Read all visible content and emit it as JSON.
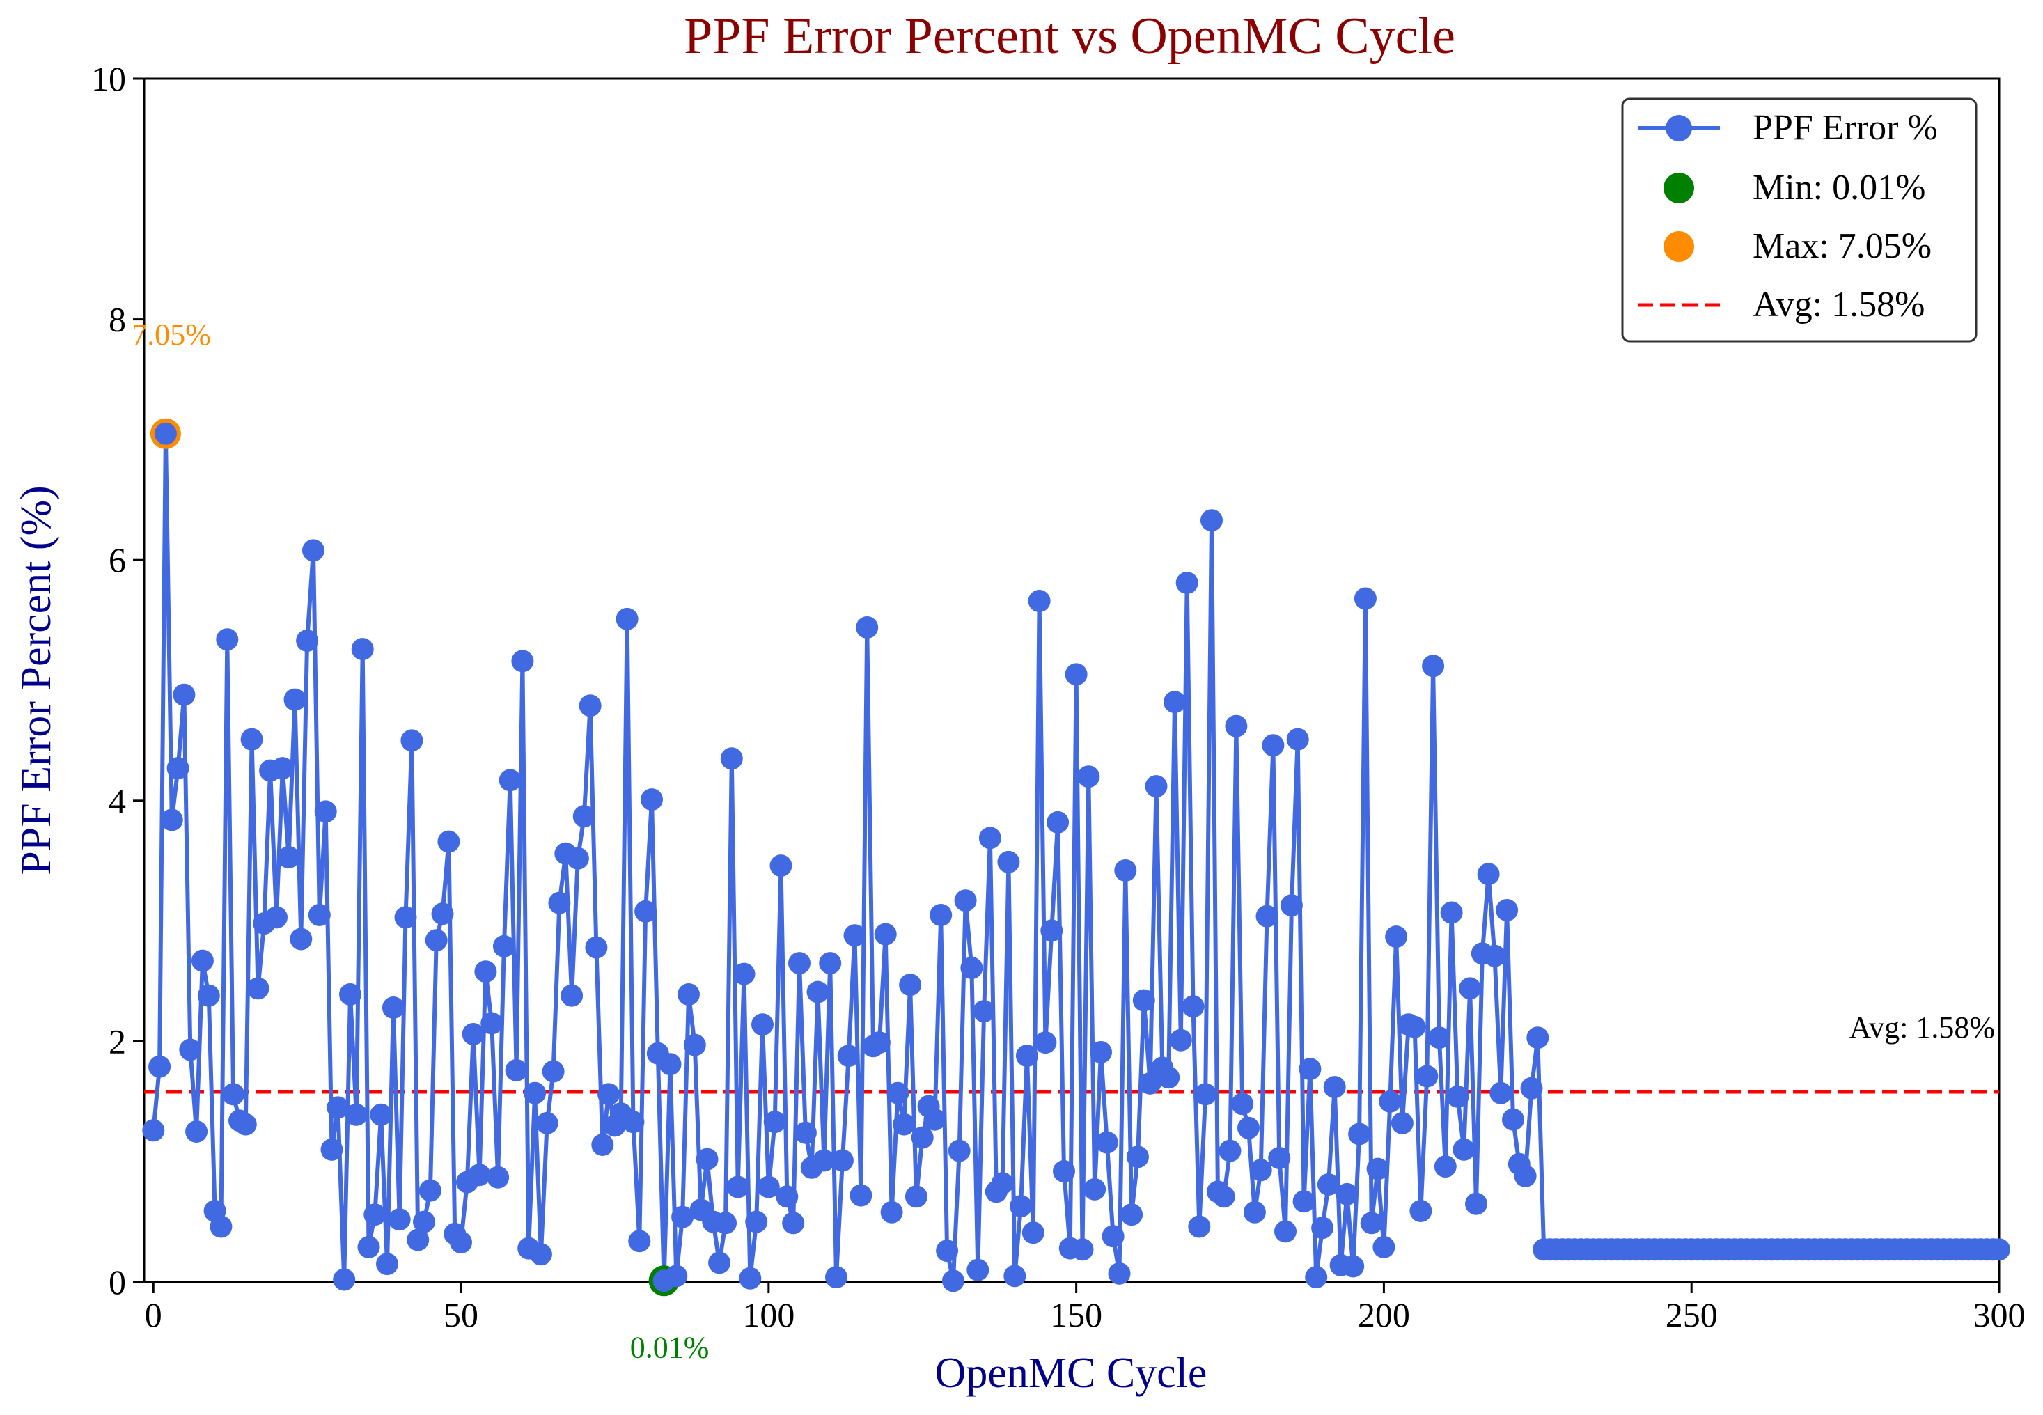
{
  "chart_data": {
    "type": "line",
    "title": "PPF Error Percent vs OpenMC Cycle",
    "xlabel": "OpenMC Cycle",
    "ylabel": "PPF Error Percent (%)",
    "xlim": [
      -1.5,
      300
    ],
    "ylim": [
      0,
      10
    ],
    "xticks": [
      0,
      50,
      100,
      150,
      200,
      250,
      300
    ],
    "yticks": [
      0,
      2,
      4,
      6,
      8,
      10
    ],
    "grid": false,
    "legend_position": "top-right",
    "colors": {
      "title": "#8b0000",
      "axis_label": "#00008b",
      "series": "#4169e1",
      "min": "#008000",
      "max": "#ff8c00",
      "avg": "#ff0000"
    },
    "series": [
      {
        "name": "PPF Error %",
        "x_start": 0,
        "values": [
          1.26,
          1.79,
          7.05,
          3.84,
          4.27,
          4.88,
          1.93,
          1.25,
          2.67,
          2.38,
          0.59,
          0.46,
          5.34,
          1.56,
          1.34,
          1.31,
          4.51,
          2.44,
          2.98,
          4.25,
          3.03,
          4.27,
          3.53,
          4.84,
          2.85,
          5.33,
          6.08,
          3.05,
          3.91,
          1.1,
          1.45,
          0.02,
          2.39,
          1.39,
          5.26,
          0.29,
          0.56,
          1.39,
          0.15,
          2.28,
          0.52,
          3.03,
          4.5,
          0.35,
          0.5,
          0.76,
          2.84,
          3.06,
          3.66,
          0.4,
          0.33,
          0.83,
          2.06,
          0.89,
          2.58,
          2.15,
          0.87,
          2.79,
          4.17,
          1.76,
          5.16,
          0.28,
          1.57,
          0.23,
          1.32,
          1.75,
          3.15,
          3.56,
          2.38,
          3.52,
          3.87,
          4.79,
          2.78,
          1.14,
          1.56,
          1.3,
          1.4,
          5.51,
          1.33,
          0.34,
          3.08,
          4.01,
          1.9,
          0.01,
          1.81,
          0.05,
          0.54,
          2.39,
          1.97,
          0.6,
          1.02,
          0.5,
          0.16,
          0.49,
          4.35,
          0.79,
          2.56,
          0.03,
          0.5,
          2.14,
          0.79,
          1.33,
          3.46,
          0.71,
          0.49,
          2.65,
          1.24,
          0.95,
          2.41,
          1.01,
          2.65,
          0.04,
          1.01,
          1.88,
          2.88,
          0.72,
          5.44,
          1.96,
          1.99,
          2.89,
          0.58,
          1.57,
          1.31,
          2.47,
          0.71,
          1.2,
          1.46,
          1.35,
          3.05,
          0.26,
          0.01,
          1.09,
          3.17,
          2.61,
          0.1,
          2.25,
          3.69,
          0.75,
          0.82,
          3.49,
          0.05,
          0.63,
          1.88,
          0.41,
          5.66,
          1.99,
          2.92,
          3.82,
          0.92,
          0.28,
          5.05,
          0.27,
          4.2,
          0.77,
          1.91,
          1.16,
          0.38,
          0.07,
          3.42,
          0.56,
          1.04,
          2.34,
          1.65,
          4.12,
          1.78,
          1.7,
          4.82,
          2.01,
          5.81,
          2.29,
          0.46,
          1.56,
          6.33,
          0.75,
          0.71,
          1.09,
          4.62,
          1.48,
          1.28,
          0.58,
          0.93,
          3.04,
          4.46,
          1.03,
          0.42,
          3.13,
          4.51,
          0.67,
          1.77,
          0.04,
          0.45,
          0.81,
          1.62,
          0.14,
          0.73,
          0.13,
          1.23,
          5.68,
          0.49,
          0.94,
          0.29,
          1.5,
          2.87,
          1.32,
          2.14,
          2.12,
          0.59,
          1.71,
          5.12,
          2.03,
          0.96,
          3.07,
          1.54,
          1.1,
          2.44,
          0.65,
          2.73,
          3.39,
          2.71,
          1.57,
          3.09,
          1.35,
          0.98,
          0.88,
          1.61,
          2.03
        ],
        "tail": {
          "from": 226,
          "to": 300,
          "value": 0.27
        }
      }
    ],
    "legend": [
      "PPF Error %",
      "Min: 0.01%",
      "Max: 7.05%",
      "Avg: 1.58%"
    ],
    "min_point": {
      "x": 83,
      "y": 0.01,
      "label": "0.01%"
    },
    "max_point": {
      "x": 2,
      "y": 7.05,
      "label": "7.05%"
    },
    "avg": {
      "value": 1.58,
      "label": "Avg: 1.58%"
    }
  }
}
